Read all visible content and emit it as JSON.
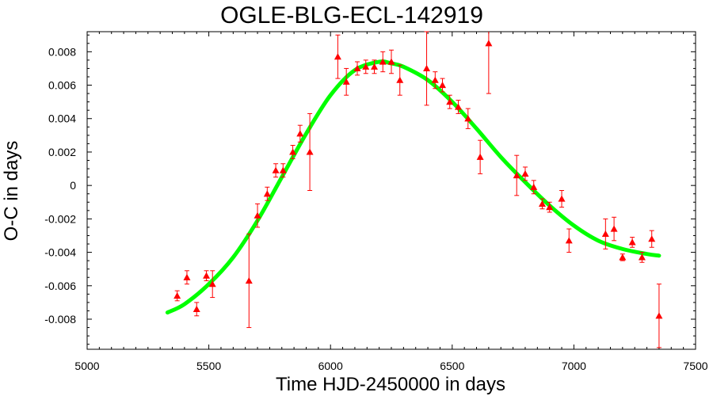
{
  "colors": {
    "data_points": "#ff0000",
    "fit_curve": "#00ff00",
    "axes": "#000000",
    "background": "#ffffff"
  },
  "chart_data": {
    "type": "scatter",
    "title": "OGLE-BLG-ECL-142919",
    "xlabel": "Time HJD-2450000 in days",
    "ylabel": "O-C in days",
    "xlim": [
      5000,
      7500
    ],
    "ylim": [
      -0.0098,
      0.0092
    ],
    "xticks": [
      5000,
      5500,
      6000,
      6500,
      7000,
      7500
    ],
    "xtick_labels": [
      "5000",
      "5500",
      "6000",
      "6500",
      "7000",
      "7500"
    ],
    "yticks": [
      -0.008,
      -0.006,
      -0.004,
      -0.002,
      0,
      0.002,
      0.004,
      0.006,
      0.008
    ],
    "ytick_labels": [
      "-0.008",
      "-0.006",
      "-0.004",
      "-0.002",
      "0",
      "0.002",
      "0.004",
      "0.006",
      "0.008"
    ],
    "grid": false,
    "legend": "none",
    "series": [
      {
        "kind": "points-with-errorbars",
        "marker": "triangle",
        "points": [
          {
            "x": 5370,
            "y": -0.0066,
            "err": 0.0003
          },
          {
            "x": 5410,
            "y": -0.0055,
            "err": 0.0004
          },
          {
            "x": 5450,
            "y": -0.0074,
            "err": 0.0004
          },
          {
            "x": 5490,
            "y": -0.0054,
            "err": 0.0003
          },
          {
            "x": 5515,
            "y": -0.0059,
            "err": 0.0008
          },
          {
            "x": 5665,
            "y": -0.0057,
            "err": 0.0028
          },
          {
            "x": 5700,
            "y": -0.0018,
            "err": 0.0007
          },
          {
            "x": 5740,
            "y": -0.0005,
            "err": 0.0004
          },
          {
            "x": 5775,
            "y": 0.0009,
            "err": 0.0004
          },
          {
            "x": 5805,
            "y": 0.0009,
            "err": 0.0004
          },
          {
            "x": 5845,
            "y": 0.002,
            "err": 0.0004
          },
          {
            "x": 5875,
            "y": 0.0031,
            "err": 0.0005
          },
          {
            "x": 5915,
            "y": 0.002,
            "err": 0.0023
          },
          {
            "x": 6030,
            "y": 0.0077,
            "err": 0.0013
          },
          {
            "x": 6065,
            "y": 0.0062,
            "err": 0.0008
          },
          {
            "x": 6110,
            "y": 0.007,
            "err": 0.0004
          },
          {
            "x": 6145,
            "y": 0.0071,
            "err": 0.0004
          },
          {
            "x": 6180,
            "y": 0.0071,
            "err": 0.0004
          },
          {
            "x": 6215,
            "y": 0.0074,
            "err": 0.0006
          },
          {
            "x": 6250,
            "y": 0.0074,
            "err": 0.0007
          },
          {
            "x": 6285,
            "y": 0.0063,
            "err": 0.0009
          },
          {
            "x": 6395,
            "y": 0.007,
            "err": 0.0022
          },
          {
            "x": 6430,
            "y": 0.0063,
            "err": 0.0005
          },
          {
            "x": 6460,
            "y": 0.006,
            "err": 0.0004
          },
          {
            "x": 6490,
            "y": 0.005,
            "err": 0.0004
          },
          {
            "x": 6525,
            "y": 0.0047,
            "err": 0.0004
          },
          {
            "x": 6565,
            "y": 0.004,
            "err": 0.0006
          },
          {
            "x": 6615,
            "y": 0.0017,
            "err": 0.001
          },
          {
            "x": 6650,
            "y": 0.0085,
            "err": 0.003
          },
          {
            "x": 6765,
            "y": 0.0006,
            "err": 0.0012
          },
          {
            "x": 6800,
            "y": 0.0007,
            "err": 0.0004
          },
          {
            "x": 6835,
            "y": -0.0001,
            "err": 0.0004
          },
          {
            "x": 6870,
            "y": -0.0011,
            "err": 0.0003
          },
          {
            "x": 6900,
            "y": -0.0013,
            "err": 0.0003
          },
          {
            "x": 6950,
            "y": -0.0008,
            "err": 0.0005
          },
          {
            "x": 6980,
            "y": -0.0033,
            "err": 0.0007
          },
          {
            "x": 7130,
            "y": -0.0029,
            "err": 0.0009
          },
          {
            "x": 7165,
            "y": -0.0026,
            "err": 0.0007
          },
          {
            "x": 7200,
            "y": -0.0043,
            "err": 0.0002
          },
          {
            "x": 7240,
            "y": -0.0034,
            "err": 0.0003
          },
          {
            "x": 7280,
            "y": -0.0043,
            "err": 0.0003
          },
          {
            "x": 7320,
            "y": -0.0032,
            "err": 0.0005
          },
          {
            "x": 7350,
            "y": -0.0078,
            "err": 0.0019
          }
        ]
      },
      {
        "kind": "fit-curve",
        "x": [
          5330,
          5400,
          5500,
          5600,
          5700,
          5800,
          5900,
          6000,
          6100,
          6200,
          6250,
          6300,
          6400,
          6500,
          6600,
          6700,
          6800,
          6900,
          7000,
          7100,
          7200,
          7300,
          7350
        ],
        "y": [
          -0.0076,
          -0.0071,
          -0.0059,
          -0.0043,
          -0.0021,
          0.0005,
          0.0031,
          0.0054,
          0.0069,
          0.0074,
          0.0073,
          0.0071,
          0.0063,
          0.005,
          0.0034,
          0.0017,
          0.0002,
          -0.0012,
          -0.0024,
          -0.0033,
          -0.0038,
          -0.0041,
          -0.0042
        ]
      }
    ]
  }
}
